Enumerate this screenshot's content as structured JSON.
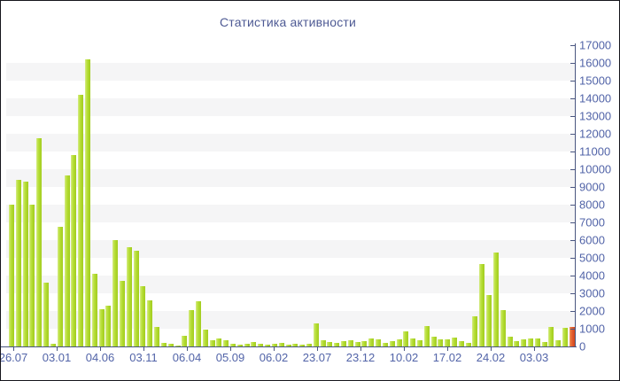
{
  "chart": {
    "title": "Статистика активности"
  },
  "chart_data": {
    "type": "bar",
    "title": "Статистика активности",
    "xlabel": "",
    "ylabel": "",
    "ylim": [
      0,
      17000
    ],
    "y_tick_step": 1000,
    "grid": "alternating-horizontal-bands",
    "legend": "none",
    "axis_position": "right",
    "x_tick_labels": [
      "26.07",
      "03.01",
      "04.06",
      "03.11",
      "06.04",
      "05.09",
      "06.02",
      "23.07",
      "23.12",
      "10.02",
      "17.02",
      "24.02",
      "03.03"
    ],
    "values": [
      8000,
      9400,
      9300,
      8000,
      11750,
      3600,
      150,
      6750,
      9650,
      10800,
      14200,
      16200,
      4100,
      2100,
      2300,
      6000,
      3700,
      5600,
      5400,
      3400,
      2600,
      1100,
      200,
      150,
      50,
      600,
      2050,
      2550,
      950,
      370,
      450,
      365,
      165,
      115,
      165,
      250,
      165,
      115,
      165,
      185,
      115,
      165,
      85,
      165,
      1300,
      365,
      235,
      200,
      285,
      335,
      235,
      300,
      465,
      385,
      215,
      285,
      385,
      865,
      465,
      365,
      1165,
      535,
      415,
      385,
      500,
      315,
      200,
      1700,
      4650,
      2915,
      5315,
      2035,
      535,
      315,
      400,
      435,
      465,
      250,
      1085,
      335,
      1050,
      1100
    ],
    "last_bar_highlighted": true,
    "colors": {
      "bar_green": "#b1da2f",
      "bar_red": "#e0572b",
      "band_gray": "#f5f5f6",
      "axis_line": "#4a5680",
      "tick_label": "#5264a8",
      "title": "#4e5a94"
    }
  }
}
